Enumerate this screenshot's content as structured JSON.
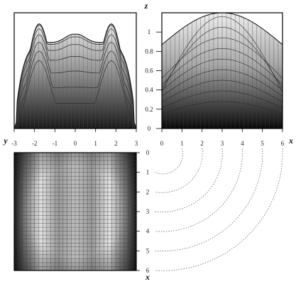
{
  "chart_data": {
    "type": "surface",
    "axes": {
      "x": {
        "label": "x",
        "range": [
          0,
          6
        ],
        "ticks": [
          "0",
          "1",
          "2",
          "3",
          "4",
          "5",
          "6"
        ]
      },
      "y": {
        "label": "y",
        "range": [
          -3,
          3
        ],
        "ticks": [
          "-3",
          "-2",
          "-1",
          "0",
          "1",
          "2",
          "3"
        ]
      },
      "z": {
        "label": "z",
        "range": [
          0,
          1.2
        ],
        "ticks": [
          "0",
          "0.2",
          "0.4",
          "0.6",
          "0.8",
          "1"
        ]
      }
    },
    "views": [
      {
        "name": "front-view",
        "horizontal": "y",
        "vertical": "z"
      },
      {
        "name": "side-view",
        "horizontal": "x",
        "vertical": "z"
      },
      {
        "name": "top-view",
        "horizontal": "y",
        "vertical": "x"
      }
    ],
    "grid": true,
    "colormap": "grayscale"
  }
}
